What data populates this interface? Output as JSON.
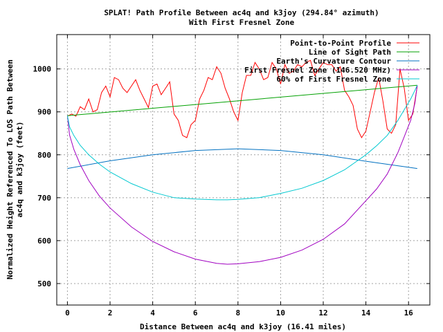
{
  "chart_data": {
    "type": "line",
    "title": "SPLAT! Path Profile Between ac4q and k3joy (294.84° azimuth)",
    "subtitle": "With First Fresnel Zone",
    "xlabel": "Distance Between ac4q and k3joy (16.41 miles)",
    "ylabel_line1": "Normalized Height Referenced To LOS Path Between",
    "ylabel_line2": "ac4q and k3joy (feet)",
    "xlim": [
      -0.5,
      17.0
    ],
    "ylim": [
      450,
      1080
    ],
    "x_ticks": [
      0,
      2,
      4,
      6,
      8,
      10,
      12,
      14,
      16
    ],
    "y_ticks": [
      500,
      600,
      700,
      800,
      900,
      1000
    ],
    "grid": true,
    "legend_position": "top-right",
    "series": [
      {
        "name": "Point-to-Point Profile",
        "color": "#ff0000",
        "x": [
          0,
          0.2,
          0.4,
          0.6,
          0.8,
          1.0,
          1.2,
          1.4,
          1.6,
          1.8,
          2.0,
          2.2,
          2.4,
          2.6,
          2.8,
          3.0,
          3.2,
          3.4,
          3.6,
          3.8,
          4.0,
          4.2,
          4.4,
          4.6,
          4.8,
          5.0,
          5.2,
          5.4,
          5.6,
          5.8,
          6.0,
          6.2,
          6.4,
          6.6,
          6.8,
          7.0,
          7.2,
          7.4,
          7.6,
          7.8,
          8.0,
          8.2,
          8.4,
          8.6,
          8.8,
          9.0,
          9.2,
          9.4,
          9.6,
          9.8,
          10.0,
          10.2,
          10.4,
          10.6,
          10.8,
          11.0,
          11.2,
          11.4,
          11.6,
          11.8,
          12.0,
          12.2,
          12.4,
          12.6,
          12.8,
          13.0,
          13.2,
          13.4,
          13.6,
          13.8,
          14.0,
          14.2,
          14.4,
          14.6,
          14.8,
          15.0,
          15.2,
          15.4,
          15.6,
          15.8,
          16.0,
          16.2,
          16.41
        ],
        "y": [
          890,
          895,
          890,
          912,
          905,
          930,
          900,
          905,
          945,
          960,
          935,
          980,
          975,
          955,
          945,
          960,
          975,
          950,
          930,
          910,
          960,
          965,
          940,
          955,
          970,
          895,
          880,
          845,
          840,
          870,
          880,
          930,
          950,
          980,
          975,
          1005,
          990,
          955,
          930,
          900,
          880,
          945,
          985,
          985,
          1015,
          1000,
          975,
          980,
          1015,
          1000,
          965,
          1010,
          990,
          995,
          1010,
          1005,
          1015,
          1020,
          985,
          1000,
          1015,
          1010,
          1010,
          995,
          1005,
          950,
          935,
          915,
          860,
          840,
          855,
          900,
          945,
          980,
          925,
          860,
          850,
          870,
          1000,
          955,
          880,
          895,
          960
        ]
      },
      {
        "name": "Line of Sight Path",
        "color": "#00a000",
        "x": [
          0,
          16.41
        ],
        "y": [
          891,
          962
        ]
      },
      {
        "name": "Earth's Curvature Contour",
        "color": "#0070c0",
        "x": [
          0,
          2,
          4,
          6,
          8,
          10,
          12,
          14,
          16.41
        ],
        "y": [
          768,
          786,
          800,
          810,
          814,
          810,
          800,
          785,
          768
        ]
      },
      {
        "name": "First Fresnel Zone (146.520 MHz)",
        "color": "#a000c0",
        "x": [
          0,
          0.1,
          0.3,
          0.6,
          1.0,
          1.5,
          2,
          3,
          4,
          5,
          6,
          7,
          7.5,
          8,
          9,
          10,
          11,
          12,
          13,
          14,
          14.5,
          15,
          15.5,
          15.8,
          16.1,
          16.3,
          16.41
        ],
        "y": [
          891,
          846,
          813,
          777,
          740,
          704,
          676,
          632,
          598,
          574,
          557,
          547,
          545,
          546,
          551,
          561,
          578,
          603,
          639,
          693,
          720,
          755,
          805,
          842,
          880,
          920,
          962
        ]
      },
      {
        "name": "60% of First Fresnel Zone",
        "color": "#00c8d0",
        "x": [
          0,
          0.1,
          0.3,
          0.6,
          1.0,
          1.5,
          2,
          3,
          4,
          5,
          6,
          7,
          7.5,
          8,
          9,
          10,
          11,
          12,
          13,
          14,
          14.5,
          15,
          15.5,
          15.8,
          16.1,
          16.3,
          16.41
        ],
        "y": [
          891,
          865,
          845,
          822,
          800,
          778,
          760,
          733,
          713,
          700,
          697,
          695,
          695,
          696,
          700,
          710,
          722,
          740,
          765,
          800,
          821,
          845,
          880,
          905,
          930,
          950,
          962
        ]
      }
    ]
  }
}
